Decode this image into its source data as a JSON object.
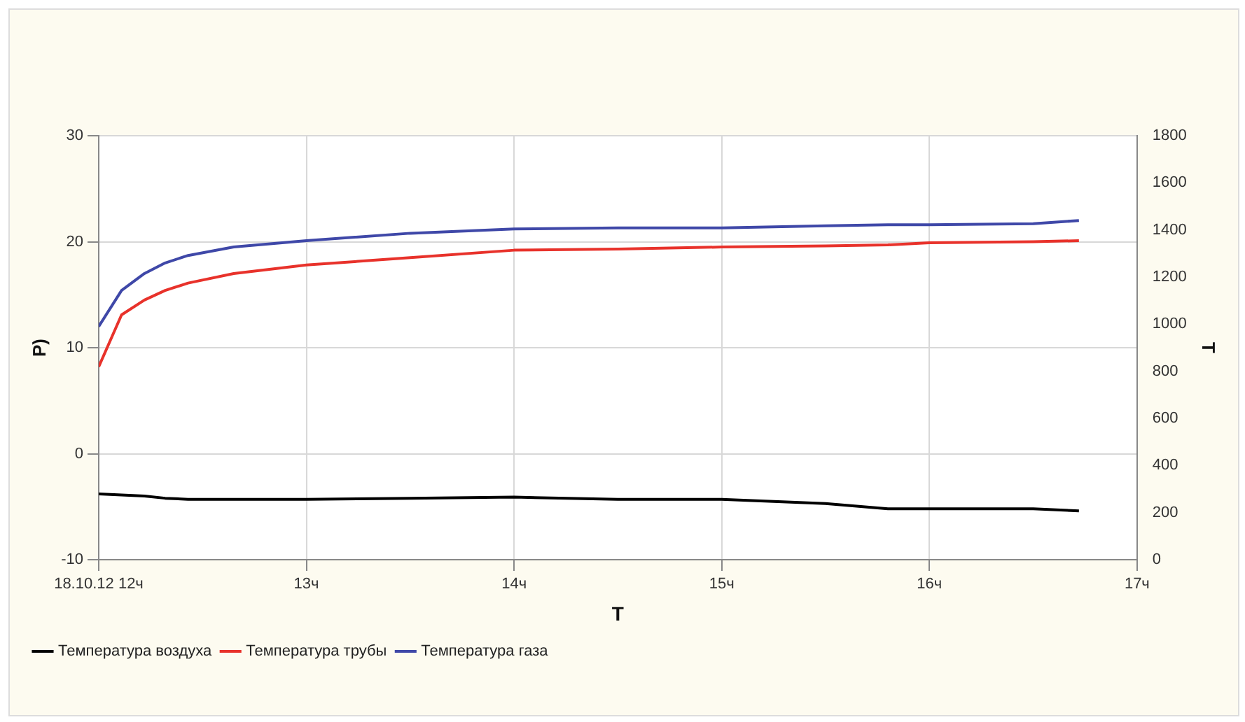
{
  "chart_data": {
    "type": "line",
    "xlabel": "T",
    "ylabel": "P)",
    "y2label": "T",
    "x": [
      12,
      12.11,
      12.22,
      12.32,
      12.43,
      12.65,
      13,
      13.5,
      14,
      14.5,
      15,
      15.5,
      15.8,
      16,
      16.5,
      16.72
    ],
    "series": [
      {
        "name": "Температура воздуха",
        "color": "#000000",
        "values": [
          -3.8,
          -3.9,
          -4.0,
          -4.2,
          -4.3,
          -4.3,
          -4.3,
          -4.2,
          -4.1,
          -4.3,
          -4.3,
          -4.7,
          -5.2,
          -5.2,
          -5.2,
          -5.4
        ]
      },
      {
        "name": "Температура трубы",
        "color": "#e8322b",
        "values": [
          8.2,
          13.1,
          14.5,
          15.4,
          16.1,
          17.0,
          17.8,
          18.5,
          19.2,
          19.3,
          19.5,
          19.6,
          19.7,
          19.9,
          20.0,
          20.1
        ]
      },
      {
        "name": "Температура газа",
        "color": "#3f48a8",
        "values": [
          12.0,
          15.4,
          17.0,
          18.0,
          18.7,
          19.5,
          20.1,
          20.8,
          21.2,
          21.3,
          21.3,
          21.5,
          21.6,
          21.6,
          21.7,
          22.0
        ]
      }
    ],
    "xlim": [
      12,
      17
    ],
    "xticks": [
      {
        "value": 12,
        "label": "18.10.12 12ч"
      },
      {
        "value": 13,
        "label": "13ч"
      },
      {
        "value": 14,
        "label": "14ч"
      },
      {
        "value": 15,
        "label": "15ч"
      },
      {
        "value": 16,
        "label": "16ч"
      },
      {
        "value": 17,
        "label": "17ч"
      }
    ],
    "ylim": [
      -10,
      30
    ],
    "yticks": [
      -10,
      0,
      10,
      20,
      30
    ],
    "y2lim": [
      0,
      1800
    ],
    "y2ticks": [
      0,
      200,
      400,
      600,
      800,
      1000,
      1200,
      1400,
      1600,
      1800
    ],
    "grid": true,
    "legend": "bottom left",
    "marker": "none",
    "line_style": "solid"
  }
}
